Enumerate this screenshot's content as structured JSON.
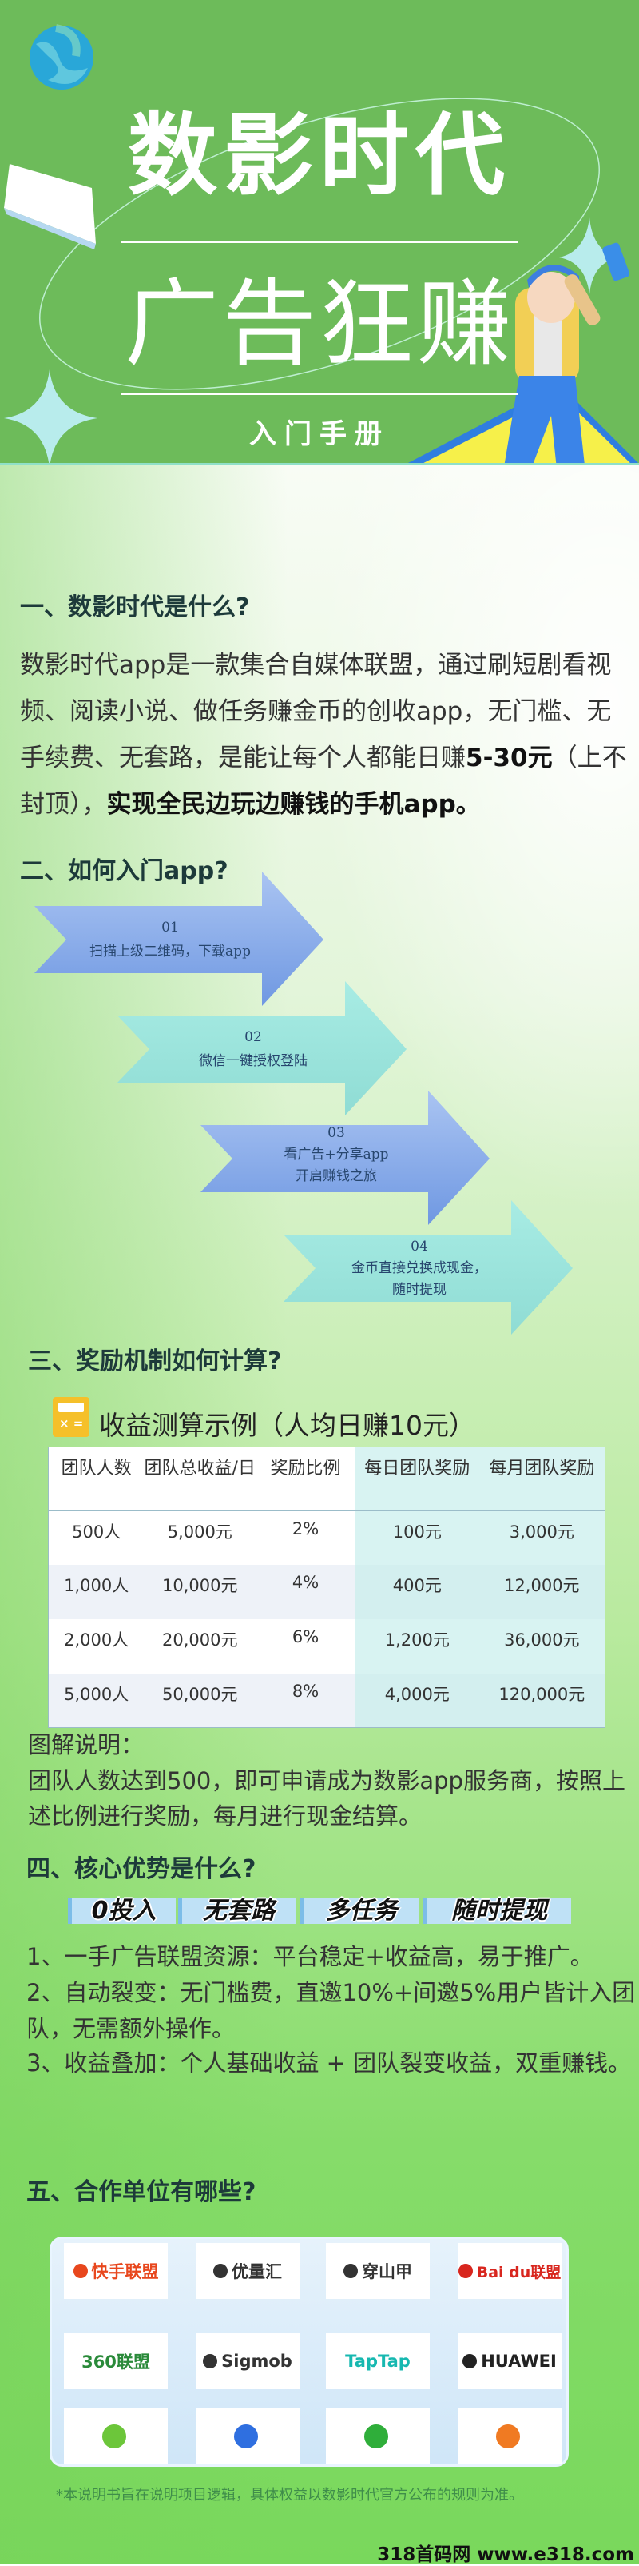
{
  "colors": {
    "header_green": "#6dbb5a",
    "heading": "#1d3a3a",
    "arrow_blue": "#8fb0ea",
    "arrow_cyan": "#9fe6dd",
    "calc_yellow": "#f5c02a"
  },
  "header": {
    "logo_icon": "shuying-logo-icon",
    "title": "数影时代",
    "subtitle": "广告狂赚",
    "tagline": "入门手册"
  },
  "section1": {
    "heading": "一、数影时代是什么?",
    "paragraph_normal": "数影时代app是一款集合自媒体联盟，通过刷短剧看视频、阅读小说、做任务赚金币的创收app，无门槛、无手续费、无套路，是能让每个人都能日赚",
    "paragraph_amount": "5-30元",
    "paragraph_tail": "（上不封顶），",
    "paragraph_bold": "实现全民边玩边赚钱的手机app。"
  },
  "section2": {
    "heading": "二、如何入门app?",
    "steps": [
      {
        "num": "01",
        "line1": "扫描上级二维码，下载app",
        "line2": ""
      },
      {
        "num": "02",
        "line1": "微信一键授权登陆",
        "line2": ""
      },
      {
        "num": "03",
        "line1": "看广告+分享app",
        "line2": "开启赚钱之旅"
      },
      {
        "num": "04",
        "line1": "金币直接兑换成现金，",
        "line2": "随时提现"
      }
    ]
  },
  "section3": {
    "heading": "三、奖励机制如何计算?",
    "calc_icon": "calculator-icon",
    "table_title": "收益测算示例（人均日赚10元）",
    "columns": [
      "团队人数",
      "团队总收益/日",
      "奖励比例",
      "每日团队奖励",
      "每月团队奖励"
    ],
    "rows": [
      [
        "500人",
        "5,000元",
        "2%",
        "100元",
        "3,000元"
      ],
      [
        "1,000人",
        "10,000元",
        "4%",
        "400元",
        "12,000元"
      ],
      [
        "2,000人",
        "20,000元",
        "6%",
        "1,200元",
        "36,000元"
      ],
      [
        "5,000人",
        "50,000元",
        "8%",
        "4,000元",
        "120,000元"
      ]
    ],
    "note_title": "图解说明：",
    "note_line1": "团队人数达到500，即可申请成为数影app服务商，按照上",
    "note_line2": "述比例进行奖励，每月进行现金结算。"
  },
  "section4": {
    "heading": "四、核心优势是什么?",
    "badges": [
      "0投入",
      "无套路",
      "多任务",
      "随时提现"
    ],
    "items": [
      "1、一手广告联盟资源：平台稳定+收益高，易于推广。",
      "2、自动裂变：无门槛费，直邀10%+间邀5%用户皆计入团",
      "队，无需额外操作。",
      "3、收益叠加：个人基础收益 + 团队裂变收益，双重赚钱。"
    ]
  },
  "section5": {
    "heading": "五、合作单位有哪些?",
    "partners": [
      {
        "name": "快手联盟",
        "color": "#e8471d",
        "icon": "kuaishou-icon"
      },
      {
        "name": "优量汇",
        "color": "#333333",
        "icon": "youlianghui-icon"
      },
      {
        "name": "穿山甲",
        "color": "#333333",
        "icon": "chuanshanjia-icon"
      },
      {
        "name": "Bai du联盟",
        "color": "#d8261e",
        "icon": "baidu-paw-icon"
      },
      {
        "name": "360联盟",
        "color": "#2a8a3a",
        "icon": ""
      },
      {
        "name": "Sigmob",
        "color": "#333333",
        "icon": "sigmob-icon"
      },
      {
        "name": "TapTap",
        "color": "#17b8b0",
        "icon": ""
      },
      {
        "name": "HUAWEI",
        "color": "#222222",
        "icon": "huawei-icon"
      },
      {
        "name": "",
        "color": "#6cc63a",
        "icon": "green-bolt-logo-icon"
      },
      {
        "name": "",
        "color": "#2f6fe0",
        "icon": "blue-m-logo-icon"
      },
      {
        "name": "",
        "color": "#2fae3a",
        "icon": "green-leaf-logo-icon"
      },
      {
        "name": "",
        "color": "#f07a22",
        "icon": "orange-wave-logo-icon"
      }
    ]
  },
  "footnote": "*本说明书旨在说明项目逻辑，具体权益以数影时代官方公布的规则为准。",
  "watermark": "318首码网 www.e318.com"
}
